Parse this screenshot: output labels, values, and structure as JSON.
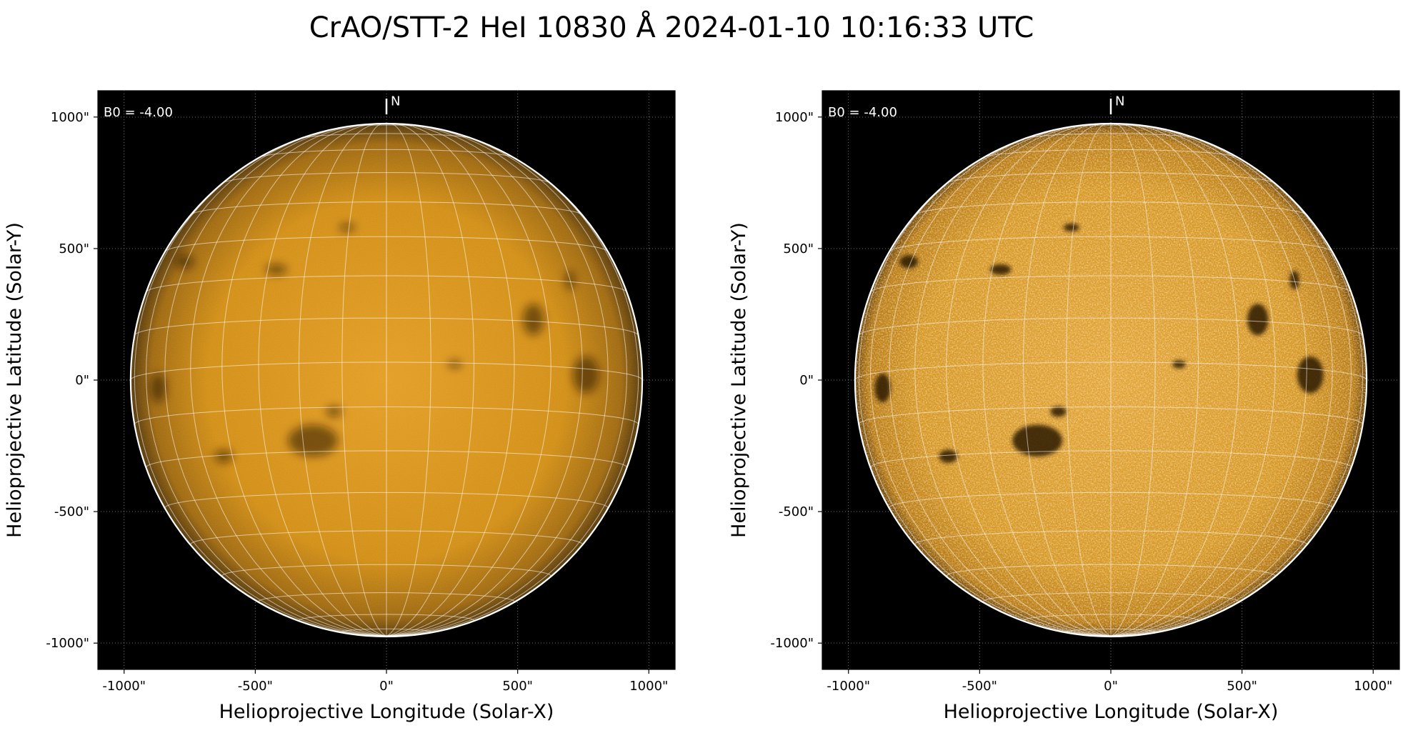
{
  "title": "CrAO/STT-2 HeI 10830 Å 2024-01-10 10:16:33 UTC",
  "colors": {
    "background": "#000000",
    "disk_left_base": "#d08a0a",
    "disk_right_base": "#c98510",
    "grid": "#ffffff"
  },
  "panels": [
    {
      "b0_label": "B0 = -4.00",
      "north_label": "N",
      "xlabel": "Helioprojective Longitude (Solar-X)",
      "ylabel": "Helioprojective Latitude (Solar-Y)",
      "xticks": [
        "-1000\"",
        "-500\"",
        "0\"",
        "500\"",
        "1000\""
      ],
      "yticks": [
        "1000\"",
        "500\"",
        "0\"",
        "-500\"",
        "-1000\""
      ],
      "style": "smooth"
    },
    {
      "b0_label": "B0 = -4.00",
      "north_label": "N",
      "xlabel": "Helioprojective Longitude (Solar-X)",
      "ylabel": "Helioprojective Latitude (Solar-Y)",
      "xticks": [
        "-1000\"",
        "-500\"",
        "0\"",
        "500\"",
        "1000\""
      ],
      "yticks": [
        "1000\"",
        "500\"",
        "0\"",
        "-500\"",
        "-1000\""
      ],
      "style": "enhanced"
    }
  ],
  "axis_range_arcsec": [
    -1100,
    1100
  ],
  "solar_radius_arcsec": 975
}
